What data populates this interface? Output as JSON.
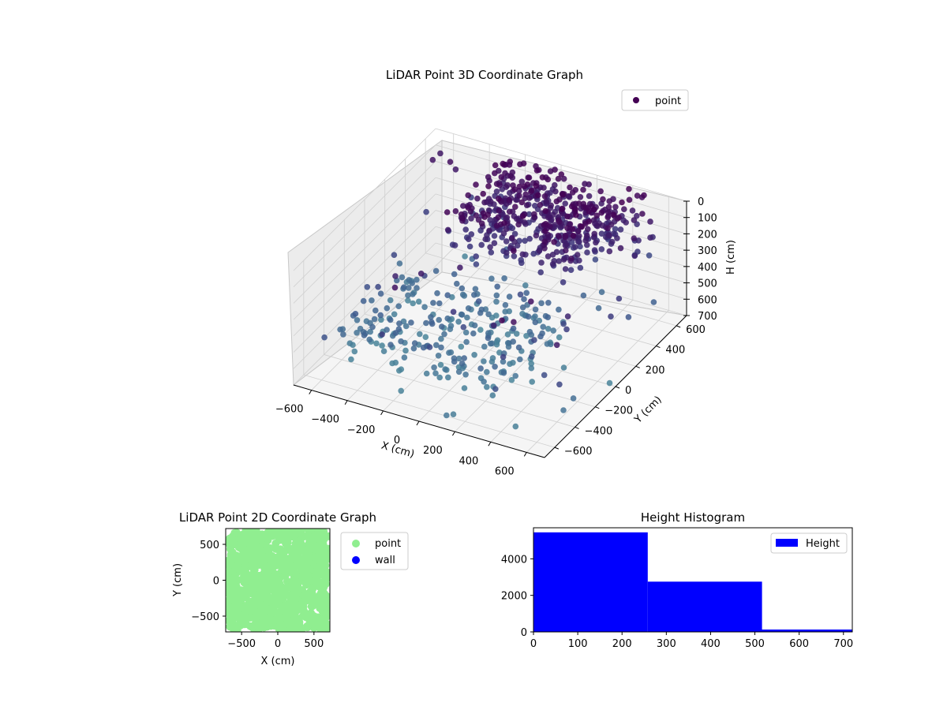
{
  "chart_data": [
    {
      "type": "scatter",
      "title": "LiDAR Point 3D Coordinate Graph",
      "xlabel": "X (cm)",
      "ylabel": "Y (cm)",
      "zlabel": "H (cm)",
      "x_ticks": [
        "−600",
        "−400",
        "−200",
        "0",
        "200",
        "400",
        "600"
      ],
      "y_ticks": [
        "−600",
        "−400",
        "−200",
        "0",
        "200",
        "400",
        "600"
      ],
      "z_ticks": [
        "0",
        "100",
        "200",
        "300",
        "400",
        "500",
        "600",
        "700"
      ],
      "xlim": [
        -700,
        700
      ],
      "ylim": [
        -700,
        700
      ],
      "zlim": [
        0,
        700
      ],
      "z_axis_inverted": true,
      "grid": true,
      "legend": {
        "position": "top-right",
        "entries": [
          {
            "label": "point",
            "color": "#440154"
          }
        ]
      },
      "series": [
        {
          "name": "point",
          "colormap": "viridis",
          "regions": [
            {
              "x_range": [
                -300,
                400
              ],
              "y_range": [
                100,
                650
              ],
              "z_range": [
                0,
                250
              ],
              "count": 360
            },
            {
              "x_range": [
                -300,
                600
              ],
              "y_range": [
                300,
                700
              ],
              "z_range": [
                0,
                200
              ],
              "count": 140
            },
            {
              "x_range": [
                -650,
                300
              ],
              "y_range": [
                -400,
                300
              ],
              "z_range": [
                500,
                700
              ],
              "count": 240
            },
            {
              "x_range": [
                -700,
                700
              ],
              "y_range": [
                -700,
                700
              ],
              "z_range": [
                0,
                700
              ],
              "count": 90
            }
          ]
        }
      ]
    },
    {
      "type": "scatter",
      "title": "LiDAR Point 2D Coordinate Graph",
      "xlabel": "X (cm)",
      "ylabel": "Y (cm)",
      "x_ticks": [
        "−500",
        "0",
        "500"
      ],
      "y_ticks": [
        "500",
        "0",
        "−500"
      ],
      "xlim": [
        -720,
        720
      ],
      "ylim": [
        -720,
        720
      ],
      "legend": {
        "position": "outside-right",
        "entries": [
          {
            "label": "point",
            "color": "#90ee90"
          },
          {
            "label": "wall",
            "color": "#0000ff"
          }
        ]
      },
      "series": [
        {
          "name": "point",
          "color": "#90ee90",
          "extent_x": [
            -700,
            700
          ],
          "extent_y": [
            -700,
            700
          ]
        },
        {
          "name": "wall",
          "color": "#0000ff",
          "count": 0
        }
      ]
    },
    {
      "type": "bar",
      "title": "Height Histogram",
      "xlabel": "",
      "ylabel": "",
      "x_ticks": [
        "0",
        "100",
        "200",
        "300",
        "400",
        "500",
        "600",
        "700"
      ],
      "y_ticks": [
        "0",
        "2000",
        "4000"
      ],
      "xlim": [
        0,
        720
      ],
      "ylim": [
        0,
        5700
      ],
      "legend": {
        "position": "top-right",
        "entries": [
          {
            "label": "Height",
            "color": "#0000ff"
          }
        ]
      },
      "series": [
        {
          "name": "Height",
          "color": "#0000ff",
          "bins": [
            {
              "from": 0,
              "to": 258,
              "count": 5450
            },
            {
              "from": 258,
              "to": 516,
              "count": 2750
            },
            {
              "from": 516,
              "to": 774,
              "count": 130
            }
          ]
        }
      ]
    }
  ]
}
